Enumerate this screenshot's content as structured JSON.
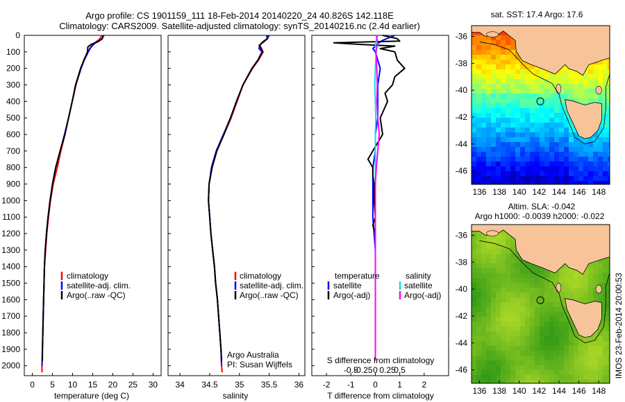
{
  "title": {
    "line1": "Argo profile: CS 1901159_111 18-Feb-2014 20140220_24 40.826S 142.118E",
    "line2": "Climatology: CARS2009. Satellite-adjusted climatology: synTS_20140216.nc (2.4d earlier)"
  },
  "colors": {
    "climatology": "#ff0000",
    "satellite": "#0000ff",
    "argo": "#000000",
    "sal_satellite": "#00e5ee",
    "sal_argo": "#ff00ff",
    "land": "#f7c49a"
  },
  "depth_axis": {
    "ticks": [
      "0",
      "100",
      "200",
      "300",
      "400",
      "500",
      "600",
      "700",
      "800",
      "900",
      "1000",
      "1100",
      "1200",
      "1300",
      "1400",
      "1500",
      "1600",
      "1700",
      "1800",
      "1900",
      "2000"
    ]
  },
  "legend_profiles": {
    "climatology": "climatology",
    "satellite": "satellite-adj. clim.",
    "argo": "Argo(..raw -QC)"
  },
  "legend_diff": {
    "temperature_head": "temperature",
    "salinity_head": "salinity",
    "satellite": "satellite",
    "argo": "Argo(-adj)"
  },
  "credits": {
    "line1": "Argo Australia",
    "line2": "PI: Susan Wijffels"
  },
  "map_sst": {
    "title": "sat. SST: 17.4  Argo: 17.6",
    "lat_ticks": [
      "-36",
      "-38",
      "-40",
      "-42",
      "-44",
      "-46"
    ],
    "lon_ticks": [
      "136",
      "138",
      "140",
      "142",
      "144",
      "146",
      "148"
    ]
  },
  "map_sla": {
    "title1": "Altim. SLA: -0.042",
    "title2": "Argo h1000: -0.0039 h2000: -0.022",
    "lat_ticks": [
      "-36",
      "-38",
      "-40",
      "-42",
      "-44",
      "-46"
    ],
    "lon_ticks": [
      "136",
      "138",
      "140",
      "142",
      "144",
      "146",
      "148"
    ]
  },
  "imos_stamp": "IMOS 23-Feb-2014 20:00:53",
  "chart_data": [
    {
      "type": "line",
      "xlabel": "temperature (deg C)",
      "xlim": [
        -2,
        32
      ],
      "ylim": [
        2060,
        0
      ],
      "x_ticks": [
        "0",
        "5",
        "10",
        "15",
        "20",
        "25",
        "30"
      ],
      "x_tick_values": [
        0,
        5,
        10,
        15,
        20,
        25,
        30
      ],
      "series": [
        {
          "name": "climatology",
          "color": "#ff0000",
          "y": [
            0,
            25,
            50,
            75,
            100,
            150,
            200,
            300,
            400,
            500,
            600,
            700,
            800,
            900,
            1000,
            1100,
            1200,
            1300,
            1400,
            1500,
            1600,
            1700,
            1800,
            1900,
            2000,
            2040
          ],
          "x": [
            17.3,
            16.6,
            15.2,
            14.4,
            13.8,
            12.8,
            12.0,
            10.7,
            9.9,
            9.0,
            8.1,
            7.1,
            6.2,
            5.2,
            4.5,
            4.0,
            3.6,
            3.3,
            3.0,
            2.9,
            2.8,
            2.7,
            2.6,
            2.5,
            2.4,
            2.4
          ]
        },
        {
          "name": "satellite-adj. clim.",
          "color": "#0000ff",
          "y": [
            0,
            25,
            50,
            75,
            100,
            150,
            200,
            300,
            400,
            500,
            600,
            700,
            800,
            900,
            1000,
            1100,
            1200,
            1300,
            1400,
            1500,
            1600,
            1700,
            1800,
            1900,
            2000
          ],
          "x": [
            17.8,
            17.1,
            15.4,
            14.5,
            13.9,
            12.9,
            12.1,
            10.8,
            9.9,
            9.0,
            8.0,
            6.9,
            5.8,
            5.0,
            4.4,
            3.9,
            3.5,
            3.2,
            3.0,
            2.9,
            2.8,
            2.7,
            2.6,
            2.5,
            2.4
          ]
        },
        {
          "name": "Argo(..raw -QC)",
          "color": "#000000",
          "y": [
            0,
            20,
            40,
            55,
            70,
            100,
            150,
            200,
            300,
            400,
            500,
            600,
            700,
            800,
            900,
            1000,
            1100,
            1200,
            1300,
            1400,
            1500,
            1600,
            1700,
            1800,
            1900,
            1970
          ],
          "x": [
            17.6,
            17.4,
            16.2,
            14.6,
            13.8,
            13.7,
            12.8,
            12.0,
            10.8,
            9.9,
            9.0,
            8.1,
            6.9,
            5.8,
            5.0,
            4.4,
            3.9,
            3.5,
            3.2,
            3.0,
            2.9,
            2.8,
            2.7,
            2.6,
            2.5,
            2.5
          ]
        }
      ]
    },
    {
      "type": "line",
      "xlabel": "salinity",
      "xlim": [
        33.8,
        36.1
      ],
      "ylim": [
        2060,
        0
      ],
      "x_ticks": [
        "34",
        "34.5",
        "35",
        "35.5",
        "36"
      ],
      "x_tick_values": [
        34,
        34.5,
        35,
        35.5,
        36
      ],
      "series": [
        {
          "name": "climatology",
          "color": "#ff0000",
          "y": [
            0,
            20,
            40,
            60,
            80,
            100,
            150,
            200,
            300,
            400,
            500,
            600,
            700,
            800,
            900,
            1000,
            1100,
            1200,
            1300,
            1400,
            1500,
            1600,
            1700,
            1800,
            1900,
            2000,
            2040
          ],
          "x": [
            35.46,
            35.47,
            35.41,
            35.33,
            35.36,
            35.4,
            35.32,
            35.22,
            35.06,
            34.96,
            34.86,
            34.74,
            34.62,
            34.54,
            34.49,
            34.48,
            34.5,
            34.52,
            34.55,
            34.58,
            34.6,
            34.63,
            34.65,
            34.67,
            34.69,
            34.7,
            34.71
          ]
        },
        {
          "name": "satellite-adj. clim.",
          "color": "#0000ff",
          "y": [
            0,
            20,
            40,
            60,
            80,
            100,
            150,
            200,
            300,
            400,
            500,
            600,
            700,
            800,
            900,
            1000,
            1100,
            1200,
            1300,
            1400,
            1500,
            1600,
            1700,
            1800,
            1900,
            2000
          ],
          "x": [
            35.5,
            35.47,
            35.4,
            35.34,
            35.33,
            35.38,
            35.31,
            35.21,
            35.06,
            34.95,
            34.85,
            34.73,
            34.61,
            34.53,
            34.49,
            34.48,
            34.5,
            34.52,
            34.55,
            34.58,
            34.6,
            34.63,
            34.65,
            34.67,
            34.69,
            34.7
          ]
        },
        {
          "name": "Argo(..raw -QC)",
          "color": "#000000",
          "y": [
            0,
            20,
            40,
            60,
            80,
            100,
            150,
            200,
            300,
            400,
            500,
            600,
            700,
            800,
            900,
            1000,
            1100,
            1200,
            1300,
            1400,
            1500,
            1600,
            1700,
            1800,
            1900,
            1970
          ],
          "x": [
            35.46,
            35.47,
            35.39,
            35.34,
            35.37,
            35.39,
            35.31,
            35.21,
            35.06,
            34.95,
            34.85,
            34.74,
            34.62,
            34.54,
            34.49,
            34.48,
            34.5,
            34.52,
            34.55,
            34.58,
            34.6,
            34.63,
            34.65,
            34.67,
            34.69,
            34.7
          ]
        }
      ]
    },
    {
      "type": "line",
      "xlabel": "T difference from climatology",
      "top_label": "S difference from climatology",
      "xlim": [
        -2.6,
        3.0
      ],
      "ylim": [
        2060,
        0
      ],
      "x_ticks": [
        "-2",
        "-1",
        "0",
        "1",
        "2"
      ],
      "x_tick_values": [
        -2,
        -1,
        0,
        1,
        2
      ],
      "s_ticks": [
        "-0.5",
        "-0.25",
        "0",
        "0.25",
        "0.5"
      ],
      "s_tick_values": [
        -0.5,
        -0.25,
        0,
        0.25,
        0.5
      ],
      "series": [
        {
          "name": "temperature satellite",
          "color": "#0000ff",
          "units": "T",
          "y": [
            0,
            30,
            50,
            80,
            100,
            150,
            200,
            300,
            400,
            500,
            600,
            700,
            800,
            900,
            1000,
            1100,
            1200,
            1300,
            1400,
            1500,
            1600,
            1700,
            1800,
            1900,
            1970
          ],
          "x": [
            0.8,
            0.3,
            0.1,
            -0.1,
            0.0,
            0.1,
            0.2,
            0.1,
            0.1,
            0.1,
            0.0,
            0.0,
            -0.1,
            -0.1,
            -0.1,
            -0.1,
            -0.05,
            0.0,
            0.0,
            0.0,
            0.0,
            0.0,
            0.0,
            0.0,
            0.0
          ]
        },
        {
          "name": "temperature Argo(-adj)",
          "color": "#000000",
          "units": "T",
          "y": [
            0,
            20,
            35,
            45,
            55,
            65,
            80,
            100,
            150,
            200,
            250,
            300,
            350,
            400,
            500,
            600,
            700,
            750,
            800,
            850,
            900,
            1000,
            1100,
            1150,
            1200,
            1300,
            1400,
            1500,
            1600,
            1700,
            1800,
            1900,
            1970
          ],
          "x": [
            0.3,
            0.9,
            1.0,
            -1.7,
            -0.6,
            0.8,
            0.2,
            0.8,
            0.9,
            1.2,
            0.8,
            0.7,
            0.4,
            0.5,
            0.2,
            0.3,
            -0.1,
            -0.3,
            -0.1,
            -0.1,
            -0.05,
            -0.05,
            0.0,
            -0.1,
            0.0,
            0.0,
            0.0,
            0.0,
            0.0,
            0.0,
            0.0,
            0.0,
            0.0
          ]
        },
        {
          "name": "salinity satellite",
          "color": "#00e5ee",
          "units": "S",
          "y": [
            0,
            50,
            100,
            200,
            300,
            400,
            500,
            600,
            700,
            800,
            900,
            1000,
            1200,
            1400,
            1600,
            1800,
            1970
          ],
          "x": [
            0.05,
            0.0,
            0.02,
            0.0,
            -0.01,
            0.0,
            0.01,
            0.0,
            0.0,
            0.0,
            0.0,
            0.0,
            0.0,
            0.0,
            0.0,
            0.0,
            0.0
          ]
        },
        {
          "name": "salinity Argo(-adj)",
          "color": "#ff00ff",
          "units": "S",
          "y": [
            0,
            50,
            100,
            200,
            300,
            400,
            500,
            600,
            700,
            800,
            900,
            1000,
            1200,
            1400,
            1600,
            1800,
            1970
          ],
          "x": [
            0.02,
            0.05,
            0.01,
            0.03,
            0.04,
            0.03,
            0.05,
            0.08,
            0.05,
            0.02,
            0.0,
            0.0,
            0.0,
            0.0,
            0.0,
            0.0,
            0.0
          ]
        }
      ]
    },
    {
      "type": "heatmap",
      "title": "sat. SST: 17.4  Argo: 17.6",
      "xlim": [
        135.2,
        149.1
      ],
      "ylim": [
        -47.0,
        -35.2
      ],
      "colormap": "jet",
      "marker": {
        "lon": 142.118,
        "lat": -40.826
      }
    },
    {
      "type": "heatmap",
      "title": "Altim. SLA: -0.042",
      "subtitle": "Argo h1000: -0.0039 h2000: -0.022",
      "xlim": [
        135.2,
        149.1
      ],
      "ylim": [
        -47.0,
        -35.2
      ],
      "colormap": "greens",
      "marker": {
        "lon": 142.118,
        "lat": -40.826
      }
    }
  ]
}
